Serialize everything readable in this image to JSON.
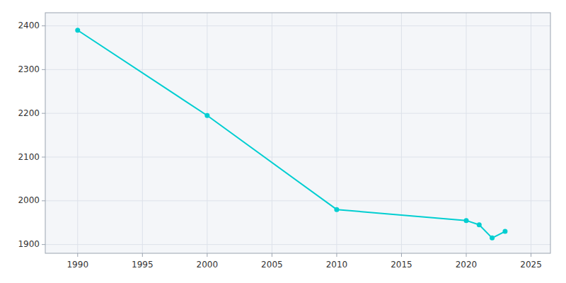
{
  "chart_data": {
    "type": "line",
    "x": [
      1990,
      2000,
      2010,
      2020,
      2021,
      2022,
      2023
    ],
    "values": [
      2390,
      2195,
      1980,
      1955,
      1945,
      1915,
      1930
    ],
    "color": "#00CED1",
    "marker": "circle",
    "xlim": [
      1987.5,
      2026.5
    ],
    "ylim": [
      1880,
      2430
    ],
    "xticks": [
      1990,
      1995,
      2000,
      2005,
      2010,
      2015,
      2020,
      2025
    ],
    "yticks": [
      1900,
      2000,
      2100,
      2200,
      2300,
      2400
    ],
    "grid": true
  }
}
